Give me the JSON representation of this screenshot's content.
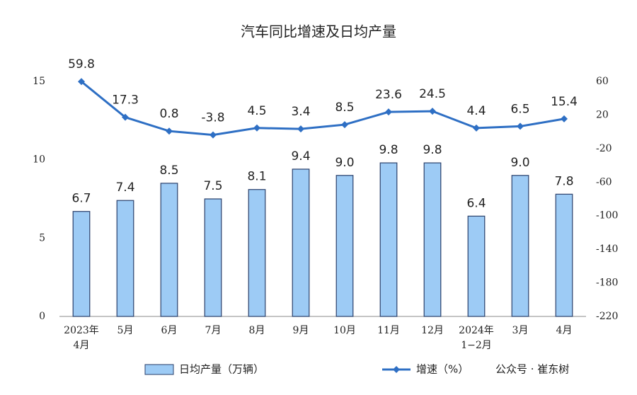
{
  "chart_data": {
    "type": "bar-line",
    "title": "汽车同比增速及日均产量",
    "categories": [
      [
        "2023年",
        "4月"
      ],
      [
        "5月"
      ],
      [
        "6月"
      ],
      [
        "7月"
      ],
      [
        "8月"
      ],
      [
        "9月"
      ],
      [
        "10月"
      ],
      [
        "11月"
      ],
      [
        "12月"
      ],
      [
        "2024年",
        "1−2月"
      ],
      [
        "3月"
      ],
      [
        "4月"
      ]
    ],
    "series": [
      {
        "name": "日均产量（万辆）",
        "type": "bar",
        "color": "#9dcbf5",
        "stroke": "#2a3f6a",
        "values": [
          6.7,
          7.4,
          8.5,
          7.5,
          8.1,
          9.4,
          9.0,
          9.8,
          9.8,
          6.4,
          9.0,
          7.8
        ],
        "value_labels": [
          "6.7",
          "7.4",
          "8.5",
          "7.5",
          "8.1",
          "9.4",
          "9.0",
          "9.8",
          "9.8",
          "6.4",
          "9.0",
          "7.8"
        ]
      },
      {
        "name": "增速（%）",
        "type": "line",
        "axis": "y2",
        "color": "#2e6fc4",
        "values": [
          59.8,
          17.3,
          0.8,
          -3.8,
          4.5,
          3.4,
          8.5,
          23.6,
          24.5,
          4.4,
          6.5,
          15.4
        ]
      }
    ],
    "ylim": [
      0,
      15
    ],
    "yticks": [
      0,
      5,
      10,
      15
    ],
    "y2lim": [
      -220,
      60
    ],
    "y2ticks": [
      -220,
      -180,
      -140,
      -100,
      -60,
      -20,
      20,
      60
    ],
    "watermark": "公众号 · 崔东树"
  }
}
